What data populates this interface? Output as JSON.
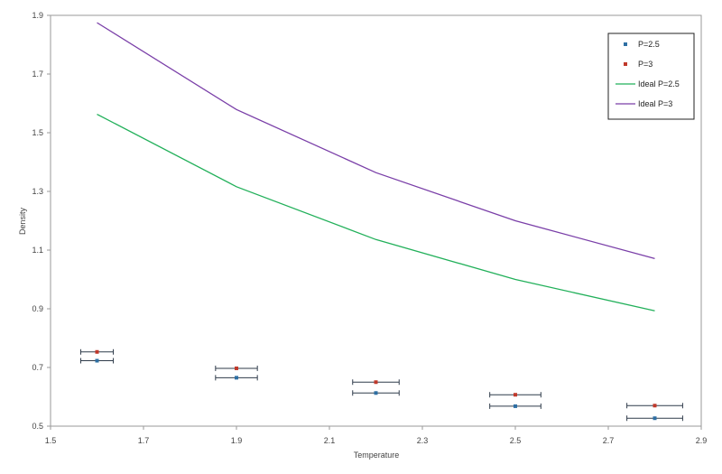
{
  "chart_data": {
    "type": "scatter",
    "title": "",
    "xlabel": "Temperature",
    "ylabel": "Density",
    "xlim": [
      1.5,
      2.9
    ],
    "ylim": [
      0.5,
      1.9
    ],
    "xticks": [
      1.5,
      1.7,
      1.9,
      2.1,
      2.3,
      2.5,
      2.7,
      2.9
    ],
    "yticks": [
      0.5,
      0.7,
      0.9,
      1.1,
      1.3,
      1.5,
      1.7,
      1.9
    ],
    "xtick_labels": [
      "1.5",
      "1.7",
      "1.9",
      "2.1",
      "2.3",
      "2.5",
      "2.7",
      "2.9"
    ],
    "ytick_labels": [
      "0.5",
      "0.7",
      "0.9",
      "1.1",
      "1.3",
      "1.5",
      "1.7",
      "1.9"
    ],
    "grid": false,
    "legend_position": "top-right",
    "series": [
      {
        "name": "P=2.5",
        "kind": "points",
        "color": "#2e6fa3",
        "points": [
          {
            "x": 1.6,
            "y": 0.723,
            "xerr": 0.035
          },
          {
            "x": 1.9,
            "y": 0.665,
            "xerr": 0.045
          },
          {
            "x": 2.2,
            "y": 0.613,
            "xerr": 0.05
          },
          {
            "x": 2.5,
            "y": 0.568,
            "xerr": 0.055
          },
          {
            "x": 2.8,
            "y": 0.527,
            "xerr": 0.06
          }
        ]
      },
      {
        "name": "P=3",
        "kind": "points",
        "color": "#c0392b",
        "points": [
          {
            "x": 1.6,
            "y": 0.753,
            "xerr": 0.035
          },
          {
            "x": 1.9,
            "y": 0.697,
            "xerr": 0.045
          },
          {
            "x": 2.2,
            "y": 0.65,
            "xerr": 0.05
          },
          {
            "x": 2.5,
            "y": 0.607,
            "xerr": 0.055
          },
          {
            "x": 2.8,
            "y": 0.57,
            "xerr": 0.06
          }
        ]
      },
      {
        "name": "Ideal P=2.5",
        "kind": "line",
        "color": "#22b05a",
        "x": [
          1.6,
          1.9,
          2.2,
          2.5,
          2.8
        ],
        "y": [
          1.563,
          1.316,
          1.136,
          1.0,
          0.893
        ]
      },
      {
        "name": "Ideal P=3",
        "kind": "line",
        "color": "#7a3fa8",
        "x": [
          1.6,
          1.9,
          2.2,
          2.5,
          2.8
        ],
        "y": [
          1.875,
          1.579,
          1.364,
          1.2,
          1.071
        ]
      }
    ]
  }
}
